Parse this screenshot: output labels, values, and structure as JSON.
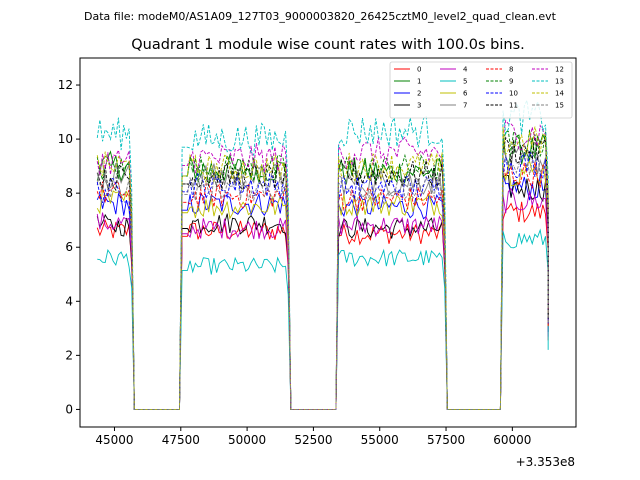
{
  "suptitle": "Data file: modeM0/AS1A09_127T03_9000003820_26425cztM0_level2_quad_clean.evt",
  "chart_data": {
    "type": "line",
    "title": "Quadrant 1 module wise count rates with 100.0s bins.",
    "xlabel": "",
    "ylabel": "",
    "x_offset_label": "+3.353e8",
    "xlim": [
      43700,
      62400
    ],
    "ylim": [
      -0.65,
      13.0
    ],
    "x_ticks": [
      45000,
      47500,
      50000,
      52500,
      55000,
      57500,
      60000
    ],
    "y_ticks": [
      0,
      2,
      4,
      6,
      8,
      10,
      12
    ],
    "bin_seconds": 100,
    "legend_position": "upper-right",
    "legend_columns": 4,
    "segments": [
      {
        "x_start": 44350,
        "x_end": 45650
      },
      {
        "x_start": 47550,
        "x_end": 51550
      },
      {
        "x_start": 53450,
        "x_end": 57450
      },
      {
        "x_start": 59650,
        "x_end": 61350
      }
    ],
    "gap_value": 0,
    "series": [
      {
        "name": "0",
        "color": "#ff0000",
        "style": "solid",
        "seg_levels": [
          6.6,
          6.6,
          6.5,
          7.3
        ]
      },
      {
        "name": "1",
        "color": "#008000",
        "style": "solid",
        "seg_levels": [
          9.0,
          8.9,
          8.8,
          9.6
        ]
      },
      {
        "name": "2",
        "color": "#0000ff",
        "style": "solid",
        "seg_levels": [
          7.6,
          7.6,
          7.5,
          8.2
        ]
      },
      {
        "name": "3",
        "color": "#000000",
        "style": "solid",
        "seg_levels": [
          6.8,
          6.9,
          6.7,
          8.2
        ]
      },
      {
        "name": "4",
        "color": "#bf00bf",
        "style": "solid",
        "seg_levels": [
          6.9,
          6.7,
          6.8,
          7.7
        ]
      },
      {
        "name": "5",
        "color": "#00bfbf",
        "style": "solid",
        "seg_levels": [
          5.6,
          5.3,
          5.6,
          6.3
        ]
      },
      {
        "name": "6",
        "color": "#bfbf00",
        "style": "solid",
        "seg_levels": [
          7.7,
          7.5,
          7.6,
          8.8
        ]
      },
      {
        "name": "7",
        "color": "#808080",
        "style": "solid",
        "seg_levels": [
          8.7,
          8.6,
          8.4,
          9.2
        ]
      },
      {
        "name": "8",
        "color": "#ff0000",
        "style": "dashed",
        "seg_levels": [
          8.0,
          7.9,
          7.8,
          8.7
        ]
      },
      {
        "name": "9",
        "color": "#008000",
        "style": "dashed",
        "seg_levels": [
          8.9,
          8.9,
          8.9,
          9.8
        ]
      },
      {
        "name": "10",
        "color": "#0000ff",
        "style": "dashed",
        "seg_levels": [
          8.1,
          8.3,
          8.2,
          9.1
        ]
      },
      {
        "name": "11",
        "color": "#000000",
        "style": "dashed",
        "seg_levels": [
          8.6,
          8.6,
          8.7,
          9.6
        ]
      },
      {
        "name": "12",
        "color": "#bf00bf",
        "style": "dashed",
        "seg_levels": [
          9.2,
          9.3,
          9.5,
          10.2
        ]
      },
      {
        "name": "13",
        "color": "#00bfbf",
        "style": "dashed",
        "seg_levels": [
          10.2,
          10.0,
          10.3,
          10.8
        ]
      },
      {
        "name": "14",
        "color": "#bfbf00",
        "style": "dashed",
        "seg_levels": [
          9.0,
          8.9,
          9.0,
          9.9
        ]
      },
      {
        "name": "15",
        "color": "#808080",
        "style": "dashed",
        "seg_levels": [
          8.3,
          8.2,
          8.1,
          9.0
        ]
      }
    ]
  }
}
